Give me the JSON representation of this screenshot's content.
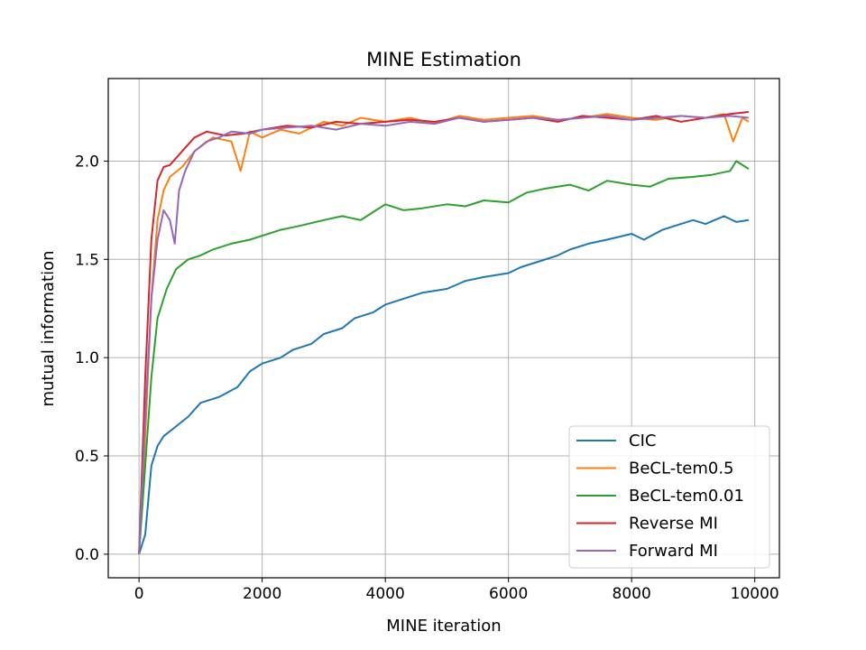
{
  "chart_data": {
    "type": "line",
    "title": "MINE Estimation",
    "xlabel": "MINE iteration",
    "ylabel": "mutual information",
    "xlim": [
      -500,
      10400
    ],
    "ylim": [
      -0.12,
      2.42
    ],
    "xticks": [
      0,
      2000,
      4000,
      6000,
      8000,
      10000
    ],
    "xtick_labels": [
      "0",
      "2000",
      "4000",
      "6000",
      "8000",
      "10000"
    ],
    "yticks": [
      0.0,
      0.5,
      1.0,
      1.5,
      2.0
    ],
    "ytick_labels": [
      "0.0",
      "0.5",
      "1.0",
      "1.5",
      "2.0"
    ],
    "grid": true,
    "legend_position": "lower-right",
    "series": [
      {
        "name": "CIC",
        "color": "#1f77b4",
        "x": [
          0,
          100,
          200,
          300,
          400,
          600,
          800,
          1000,
          1300,
          1600,
          1800,
          2000,
          2300,
          2500,
          2800,
          3000,
          3300,
          3500,
          3800,
          4000,
          4300,
          4600,
          5000,
          5300,
          5600,
          6000,
          6200,
          6500,
          6800,
          7000,
          7300,
          7600,
          8000,
          8200,
          8500,
          8800,
          9000,
          9200,
          9500,
          9700,
          9900
        ],
        "values": [
          0.0,
          0.1,
          0.45,
          0.55,
          0.6,
          0.65,
          0.7,
          0.77,
          0.8,
          0.85,
          0.93,
          0.97,
          1.0,
          1.04,
          1.07,
          1.12,
          1.15,
          1.2,
          1.23,
          1.27,
          1.3,
          1.33,
          1.35,
          1.39,
          1.41,
          1.43,
          1.46,
          1.49,
          1.52,
          1.55,
          1.58,
          1.6,
          1.63,
          1.6,
          1.65,
          1.68,
          1.7,
          1.68,
          1.72,
          1.69,
          1.7
        ]
      },
      {
        "name": "BeCL-tem0.5",
        "color": "#ff7f0e",
        "x": [
          0,
          100,
          200,
          300,
          400,
          500,
          700,
          900,
          1200,
          1500,
          1650,
          1800,
          2000,
          2300,
          2600,
          3000,
          3300,
          3600,
          4000,
          4400,
          4800,
          5200,
          5600,
          6000,
          6400,
          6800,
          7200,
          7600,
          8000,
          8400,
          8800,
          9200,
          9500,
          9650,
          9800,
          9900
        ],
        "values": [
          0.0,
          0.6,
          1.3,
          1.7,
          1.85,
          1.92,
          1.97,
          2.05,
          2.12,
          2.1,
          1.95,
          2.15,
          2.12,
          2.16,
          2.14,
          2.2,
          2.18,
          2.22,
          2.2,
          2.22,
          2.19,
          2.23,
          2.21,
          2.22,
          2.23,
          2.21,
          2.22,
          2.24,
          2.22,
          2.21,
          2.23,
          2.22,
          2.24,
          2.1,
          2.22,
          2.2
        ]
      },
      {
        "name": "BeCL-tem0.01",
        "color": "#2ca02c",
        "x": [
          0,
          100,
          200,
          300,
          450,
          600,
          800,
          1000,
          1200,
          1500,
          1800,
          2000,
          2300,
          2600,
          3000,
          3300,
          3600,
          3800,
          4000,
          4300,
          4600,
          5000,
          5300,
          5600,
          6000,
          6300,
          6600,
          7000,
          7300,
          7600,
          8000,
          8300,
          8600,
          9000,
          9300,
          9600,
          9700,
          9900
        ],
        "values": [
          0.0,
          0.45,
          0.9,
          1.2,
          1.35,
          1.45,
          1.5,
          1.52,
          1.55,
          1.58,
          1.6,
          1.62,
          1.65,
          1.67,
          1.7,
          1.72,
          1.7,
          1.74,
          1.78,
          1.75,
          1.76,
          1.78,
          1.77,
          1.8,
          1.79,
          1.84,
          1.86,
          1.88,
          1.85,
          1.9,
          1.88,
          1.87,
          1.91,
          1.92,
          1.93,
          1.95,
          2.0,
          1.96
        ]
      },
      {
        "name": "Reverse MI",
        "color": "#d62728",
        "x": [
          0,
          100,
          200,
          300,
          400,
          500,
          700,
          900,
          1100,
          1400,
          1700,
          2000,
          2400,
          2800,
          3200,
          3600,
          4000,
          4400,
          4800,
          5200,
          5600,
          6000,
          6400,
          6800,
          7200,
          7600,
          8000,
          8400,
          8800,
          9200,
          9600,
          9900
        ],
        "values": [
          0.0,
          0.9,
          1.6,
          1.9,
          1.97,
          1.98,
          2.05,
          2.12,
          2.15,
          2.13,
          2.14,
          2.16,
          2.18,
          2.17,
          2.2,
          2.19,
          2.2,
          2.21,
          2.2,
          2.22,
          2.2,
          2.21,
          2.22,
          2.2,
          2.23,
          2.22,
          2.21,
          2.23,
          2.2,
          2.22,
          2.24,
          2.25
        ]
      },
      {
        "name": "Forward MI",
        "color": "#9467bd",
        "x": [
          0,
          100,
          200,
          300,
          400,
          500,
          580,
          650,
          750,
          900,
          1100,
          1300,
          1500,
          1800,
          2000,
          2400,
          2800,
          3200,
          3600,
          4000,
          4400,
          4800,
          5200,
          5600,
          6000,
          6400,
          6800,
          7200,
          7600,
          8000,
          8400,
          8800,
          9200,
          9600,
          9900
        ],
        "values": [
          0.0,
          0.7,
          1.3,
          1.6,
          1.75,
          1.7,
          1.58,
          1.85,
          1.95,
          2.05,
          2.1,
          2.12,
          2.15,
          2.14,
          2.16,
          2.17,
          2.18,
          2.16,
          2.19,
          2.18,
          2.2,
          2.19,
          2.22,
          2.2,
          2.21,
          2.22,
          2.21,
          2.22,
          2.23,
          2.21,
          2.22,
          2.23,
          2.22,
          2.23,
          2.22
        ]
      }
    ]
  }
}
